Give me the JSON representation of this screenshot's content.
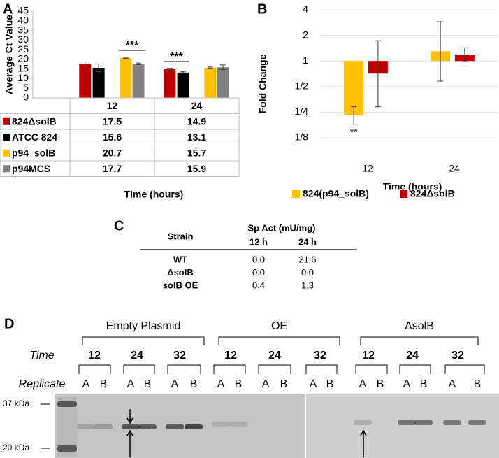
{
  "panel_labels": [
    "A",
    "B",
    "C",
    "D"
  ],
  "chart_data": [
    {
      "type": "bar",
      "y_label": "Average Ct Value",
      "x_label": "Time (hours)",
      "categories": [
        "12",
        "24"
      ],
      "ylim": [
        0,
        45
      ],
      "yticks": [
        0,
        5,
        10,
        15,
        20,
        25,
        30,
        35,
        40,
        45
      ],
      "series": [
        {
          "name": "824ΔsolB",
          "color": "#c00000",
          "values": [
            17.5,
            14.9
          ],
          "errors": [
            1.2,
            0.5
          ]
        },
        {
          "name": "ATCC 824",
          "color": "#000000",
          "values": [
            15.6,
            13.1
          ],
          "errors": [
            2.0,
            0.4
          ]
        },
        {
          "name": "p94_solB",
          "color": "#ffc000",
          "values": [
            20.7,
            15.7
          ],
          "errors": [
            0.3,
            0.3
          ]
        },
        {
          "name": "p94MCS",
          "color": "#808080",
          "values": [
            17.7,
            15.9
          ],
          "errors": [
            0.4,
            1.2
          ]
        }
      ],
      "annotations": [
        "***",
        "***"
      ]
    },
    {
      "type": "bar",
      "log_base": 2,
      "y_label": "Fold Change",
      "x_label": "Time (hours)",
      "categories": [
        "12",
        "24"
      ],
      "ylim": [
        0.0625,
        4
      ],
      "yticks": [
        {
          "value": 0.125,
          "label": "1/8"
        },
        {
          "value": 0.25,
          "label": "1/4"
        },
        {
          "value": 0.5,
          "label": "1/2"
        },
        1,
        2,
        4
      ],
      "grid": true,
      "legend": "bottom",
      "series": [
        {
          "name": "824(p94_solB)",
          "color": "#ffc000",
          "values": [
            0.23,
            1.3
          ],
          "error_low": [
            0.18,
            0.58
          ],
          "error_high": [
            0.29,
            2.9
          ]
        },
        {
          "name": "824ΔsolB",
          "color": "#c00000",
          "values": [
            0.71,
            1.19
          ],
          "error_low": [
            0.29,
            0.98
          ],
          "error_high": [
            1.73,
            1.43
          ]
        }
      ],
      "annotations": [
        "**"
      ]
    }
  ],
  "table": {
    "header": {
      "strain": "Strain",
      "measure": "Sp Act (mU/mg)",
      "columns": [
        "12 h",
        "24 h"
      ]
    },
    "rows": [
      [
        "WT",
        "0.0",
        "21.6"
      ],
      [
        "ΔsolB",
        "0.0",
        "0.0"
      ],
      [
        "solB OE",
        "0.4",
        "1.3"
      ]
    ]
  },
  "gel": {
    "groups": [
      {
        "label": "Empty Plasmid",
        "times": [
          "12",
          "24",
          "32"
        ]
      },
      {
        "label": "OE",
        "times": [
          "12",
          "24",
          "32"
        ]
      },
      {
        "label": "ΔsolB",
        "times": [
          "12",
          "24",
          "32"
        ]
      }
    ],
    "time_label": "Time",
    "replicate_label": "Replicate",
    "replicates": [
      "A",
      "B"
    ],
    "markers": [
      "37 kDa",
      "20 kDa"
    ]
  }
}
